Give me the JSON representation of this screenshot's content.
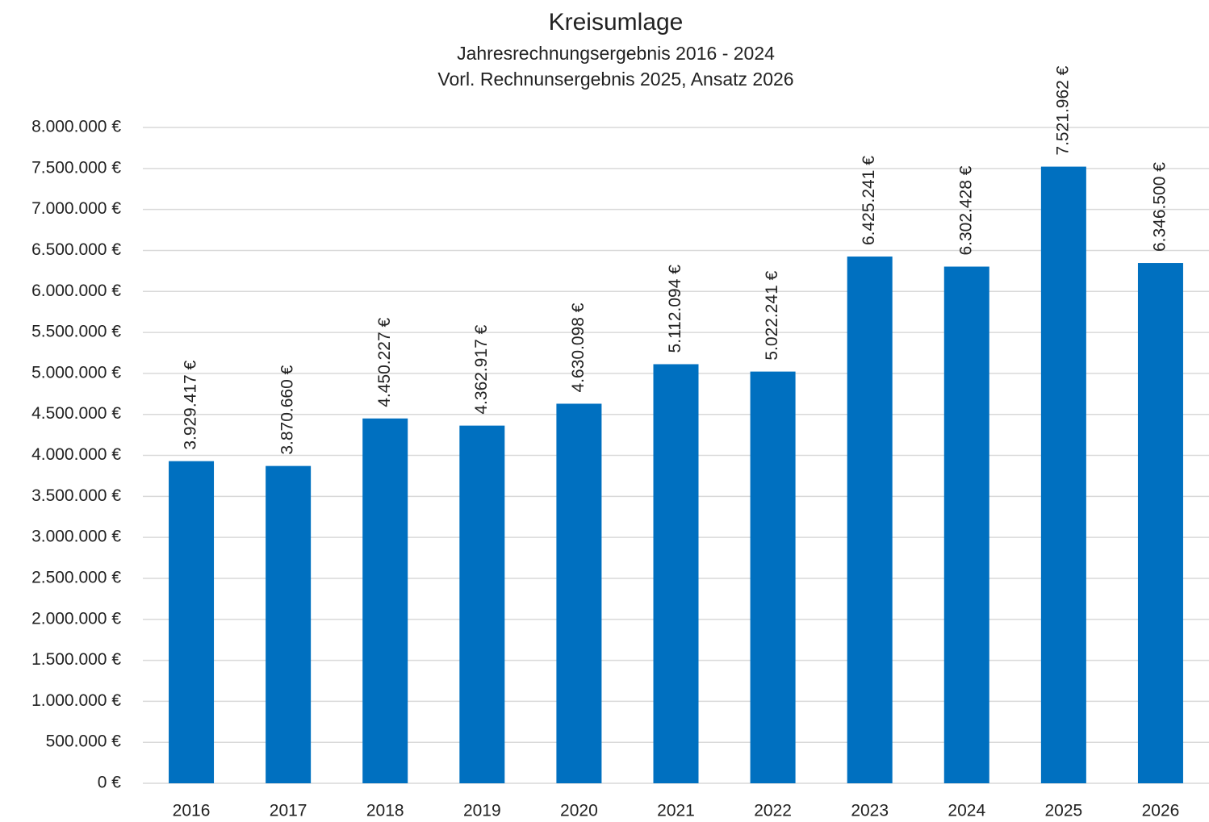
{
  "chart_data": {
    "type": "bar",
    "title": "Kreisumlage",
    "subtitle": [
      "Jahresrechnungsergebnis 2016 - 2024",
      "Vorl. Rechnunsergebnis 2025, Ansatz 2026"
    ],
    "categories": [
      "2016",
      "2017",
      "2018",
      "2019",
      "2020",
      "2021",
      "2022",
      "2023",
      "2024",
      "2025",
      "2026"
    ],
    "values": [
      3929417,
      3870660,
      4450227,
      4362917,
      4630098,
      5112094,
      5022241,
      6425241,
      6302428,
      7521962,
      6346500
    ],
    "value_labels": [
      "3.929.417 €",
      "3.870.660 €",
      "4.450.227 €",
      "4.362.917 €",
      "4.630.098 €",
      "5.112.094 €",
      "5.022.241 €",
      "6.425.241 €",
      "6.302.428 €",
      "7.521.962 €",
      "6.346.500 €"
    ],
    "color": "#0070c0",
    "ylim": [
      0,
      8000000
    ],
    "yticks": [
      {
        "value": 0,
        "label": "0 €"
      },
      {
        "value": 500000,
        "label": "500.000 €"
      },
      {
        "value": 1000000,
        "label": "1.000.000 €"
      },
      {
        "value": 1500000,
        "label": "1.500.000 €"
      },
      {
        "value": 2000000,
        "label": "2.000.000 €"
      },
      {
        "value": 2500000,
        "label": "2.500.000 €"
      },
      {
        "value": 3000000,
        "label": "3.000.000 €"
      },
      {
        "value": 3500000,
        "label": "3.500.000 €"
      },
      {
        "value": 4000000,
        "label": "4.000.000 €"
      },
      {
        "value": 4500000,
        "label": "4.500.000 €"
      },
      {
        "value": 5000000,
        "label": "5.000.000 €"
      },
      {
        "value": 5500000,
        "label": "5.500.000 €"
      },
      {
        "value": 6000000,
        "label": "6.000.000 €"
      },
      {
        "value": 6500000,
        "label": "6.500.000 €"
      },
      {
        "value": 7000000,
        "label": "7.000.000 €"
      },
      {
        "value": 7500000,
        "label": "7.500.000 €"
      },
      {
        "value": 8000000,
        "label": "8.000.000 €"
      }
    ],
    "grid": true
  }
}
